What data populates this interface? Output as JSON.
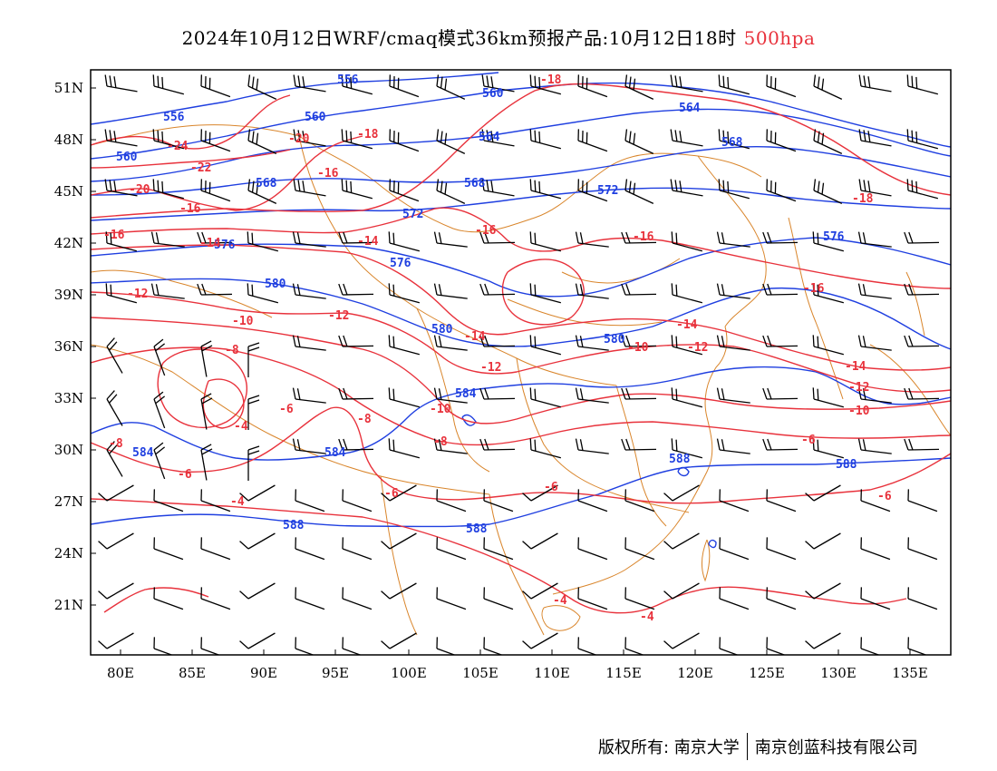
{
  "title": {
    "main": "2024年10月12日WRF/cmaq模式36km预报产品:10月12日18时",
    "level": "500hpa"
  },
  "colors": {
    "height_contour": "#1f3fe0",
    "temp_contour": "#e8323c",
    "boundaries": "#d9852b",
    "wind_barbs": "#000000",
    "level_text": "#e8323c"
  },
  "axes": {
    "lat_labels": [
      "51N",
      "48N",
      "45N",
      "42N",
      "39N",
      "36N",
      "33N",
      "30N",
      "27N",
      "24N",
      "21N"
    ],
    "lon_labels": [
      "80E",
      "85E",
      "90E",
      "95E",
      "100E",
      "105E",
      "110E",
      "115E",
      "120E",
      "125E",
      "130E",
      "135E"
    ]
  },
  "height_labels": [
    "556",
    "556",
    "560",
    "560",
    "560",
    "564",
    "564",
    "568",
    "568",
    "568",
    "572",
    "572",
    "576",
    "576",
    "576",
    "580",
    "580",
    "580",
    "584",
    "584",
    "584",
    "588",
    "588",
    "588",
    "588"
  ],
  "temp_labels": [
    "-24",
    "-22",
    "-20",
    "-20",
    "-18",
    "-18",
    "-18",
    "-16",
    "-16",
    "-16",
    "-16",
    "-16",
    "-16",
    "-14",
    "-14",
    "-14",
    "-14",
    "-14",
    "-12",
    "-12",
    "-12",
    "-12",
    "-12",
    "-10",
    "-10",
    "-10",
    "-10",
    "-8",
    "-8",
    "-8",
    "-8",
    "-6",
    "-6",
    "-6",
    "-6",
    "-6",
    "-6",
    "-4",
    "-4",
    "-4",
    "-4"
  ],
  "credits": {
    "left": "版权所有: 南京大学",
    "right": "南京创蓝科技有限公司"
  }
}
